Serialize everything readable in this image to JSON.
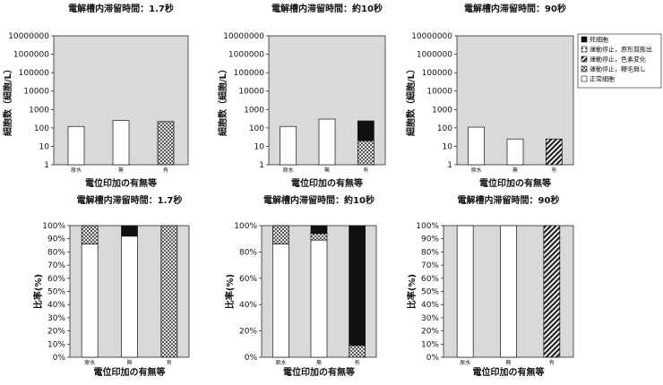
{
  "chart_data": {
    "type": "bar",
    "legend": {
      "placement": "right",
      "entries": [
        "死細胞",
        "運動停止，原形質膨出",
        "運動停止，色素変化",
        "運動停止，鞭毛無し",
        "正常細胞"
      ]
    },
    "top_row": {
      "ylabel": "細胞数（細胞/L）",
      "xlabel": "電位印加の有無等",
      "scale": "log",
      "ylim": [
        1,
        10000000
      ],
      "ticks": [
        "1",
        "10",
        "100",
        "1000",
        "10000",
        "100000",
        "1000000",
        "10000000"
      ],
      "panels": [
        {
          "title": "電解槽内滞留時間：1.7秒",
          "categories": [
            "原水",
            "無",
            "有"
          ],
          "bars": [
            [
              {
                "cls": "正常細胞",
                "v": 120
              }
            ],
            [
              {
                "cls": "正常細胞",
                "v": 250
              }
            ],
            [
              {
                "cls": "運動停止，鞭毛無し",
                "v": 220
              }
            ]
          ]
        },
        {
          "title": "電解槽内滞留時間：約10秒",
          "categories": [
            "原水",
            "無",
            "有"
          ],
          "bars": [
            [
              {
                "cls": "正常細胞",
                "v": 120
              }
            ],
            [
              {
                "cls": "正常細胞",
                "v": 300
              }
            ],
            [
              {
                "cls": "運動停止，鞭毛無し",
                "v": 20
              },
              {
                "cls": "死細胞",
                "v": 220
              }
            ]
          ]
        },
        {
          "title": "電解槽内滞留時間：90秒",
          "categories": [
            "原水",
            "無",
            "有"
          ],
          "bars": [
            [
              {
                "cls": "正常細胞",
                "v": 110
              }
            ],
            [
              {
                "cls": "正常細胞",
                "v": 25
              }
            ],
            [
              {
                "cls": "運動停止，色素変化",
                "v": 25
              }
            ]
          ]
        }
      ]
    },
    "bottom_row": {
      "ylabel": "比率(%)",
      "xlabel": "電位印加の有無等",
      "ylim": [
        0,
        100
      ],
      "panels": [
        {
          "title": "電解槽内滞留時間：1.7秒",
          "ticks": [
            "0%",
            "10%",
            "20%",
            "30%",
            "40%",
            "50%",
            "60%",
            "70%",
            "80%",
            "90%",
            "100%"
          ],
          "categories": [
            "原水",
            "無",
            "有"
          ],
          "bars": [
            [
              {
                "cls": "正常細胞",
                "v": 86
              },
              {
                "cls": "運動停止，鞭毛無し",
                "v": 14
              }
            ],
            [
              {
                "cls": "正常細胞",
                "v": 92
              },
              {
                "cls": "死細胞",
                "v": 8
              }
            ],
            [
              {
                "cls": "運動停止，鞭毛無し",
                "v": 100
              }
            ]
          ]
        },
        {
          "title": "電解槽内滞留時間：約10秒",
          "ticks": [
            "0%",
            "20%",
            "40%",
            "60%",
            "80%",
            "100%"
          ],
          "categories": [
            "原水",
            "無",
            "有"
          ],
          "bars": [
            [
              {
                "cls": "正常細胞",
                "v": 86
              },
              {
                "cls": "運動停止，鞭毛無し",
                "v": 14
              }
            ],
            [
              {
                "cls": "正常細胞",
                "v": 89
              },
              {
                "cls": "運動停止，鞭毛無し",
                "v": 5
              },
              {
                "cls": "死細胞",
                "v": 6
              }
            ],
            [
              {
                "cls": "運動停止，鞭毛無し",
                "v": 9
              },
              {
                "cls": "死細胞",
                "v": 91
              }
            ]
          ]
        },
        {
          "title": "電解槽内滞留時間：90秒",
          "ticks": [
            "0%",
            "10%",
            "20%",
            "30%",
            "40%",
            "50%",
            "60%",
            "70%",
            "80%",
            "90%",
            "100%"
          ],
          "categories": [
            "原水",
            "無",
            "有"
          ],
          "bars": [
            [
              {
                "cls": "正常細胞",
                "v": 100
              }
            ],
            [
              {
                "cls": "正常細胞",
                "v": 100
              }
            ],
            [
              {
                "cls": "運動停止，色素変化",
                "v": 100
              }
            ]
          ]
        }
      ]
    },
    "colors": {
      "plot_bg": "#d9d9d9",
      "dead": "#111111",
      "normal": "#ffffff",
      "stroke": "#111111"
    }
  }
}
